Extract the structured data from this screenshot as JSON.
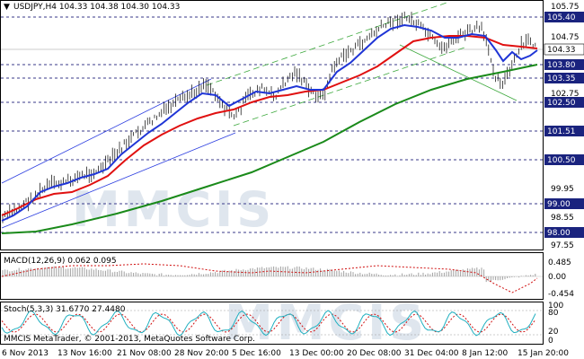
{
  "main_chart": {
    "header": "USDJPY,H4  104.33 104.38 104.30 104.33",
    "y_ticks": [
      "105.75",
      "104.75",
      "103.75",
      "102.75",
      "99.95",
      "98.55",
      "97.55"
    ],
    "levels": [
      "105.40",
      "104.33",
      "103.80",
      "103.35",
      "102.50",
      "101.51",
      "100.50",
      "99.00",
      "98.00"
    ],
    "current_price_label": "104.33"
  },
  "macd": {
    "header": "MACD(12,26,9) 0.062 0.095",
    "y_ticks": [
      "0.485",
      "0.00",
      "-0.454"
    ]
  },
  "stoch": {
    "header": "Stoch(5,3,3) 31.6770 27.4480",
    "y_ticks": [
      "100",
      "80",
      "20",
      "0"
    ]
  },
  "copyright": "MMCIS MetaTrader, © 2001-2013, MetaQuotes Software Corp.",
  "watermark": "MMCIS",
  "x_labels": [
    "6 Nov 2013",
    "13 Nov 16:00",
    "21 Nov 08:00",
    "28 Nov 20:00",
    "5 Dec 16:00",
    "13 Dec 00:00",
    "20 Dec 08:00",
    "31 Dec 04:00",
    "8 Jan 12:00",
    "15 Jan 20:00"
  ],
  "colors": {
    "level_box": "#1a237e",
    "ma_fast": "#1f35d6",
    "ma_mid": "#e01010",
    "ma_slow": "#1a8a1a",
    "channel_blue": "#2c3ee0",
    "channel_green": "#3ca83c",
    "macd_signal": "#d01010",
    "stoch_main": "#20b0c0",
    "stoch_signal": "#d01010"
  }
}
